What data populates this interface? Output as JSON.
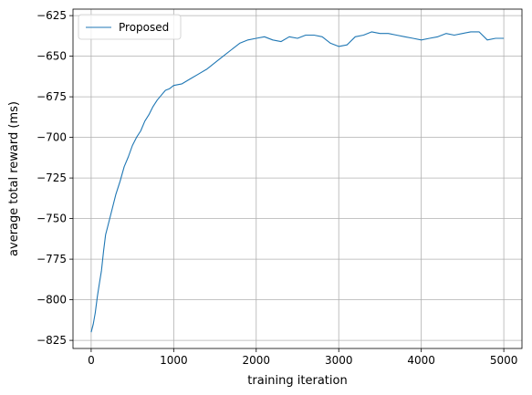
{
  "chart_data": {
    "type": "line",
    "title": "",
    "xlabel": "training iteration",
    "ylabel": "average total reward (ms)",
    "xlim": [
      -220,
      5220
    ],
    "ylim": [
      -830,
      -621
    ],
    "xticks": [
      0,
      1000,
      2000,
      3000,
      4000,
      5000
    ],
    "yticks": [
      -825,
      -800,
      -775,
      -750,
      -725,
      -700,
      -675,
      -650,
      -625
    ],
    "grid": true,
    "legend_position": "top-left",
    "series": [
      {
        "name": "Proposed",
        "color": "#1f77b4",
        "x": [
          0,
          25,
          50,
          75,
          100,
          125,
          150,
          175,
          200,
          250,
          300,
          350,
          400,
          450,
          500,
          550,
          600,
          650,
          700,
          750,
          800,
          850,
          900,
          950,
          1000,
          1100,
          1200,
          1300,
          1400,
          1500,
          1600,
          1700,
          1800,
          1900,
          2000,
          2100,
          2200,
          2300,
          2400,
          2500,
          2600,
          2700,
          2800,
          2900,
          3000,
          3100,
          3200,
          3300,
          3400,
          3500,
          3600,
          3700,
          3800,
          3900,
          4000,
          4100,
          4200,
          4300,
          4400,
          4500,
          4600,
          4700,
          4800,
          4900,
          5000
        ],
        "values": [
          -820,
          -815,
          -808,
          -798,
          -790,
          -782,
          -770,
          -760,
          -755,
          -745,
          -735,
          -727,
          -718,
          -712,
          -705,
          -700,
          -696,
          -690,
          -686,
          -681,
          -677,
          -674,
          -671,
          -670,
          -668,
          -667,
          -664,
          -661,
          -658,
          -654,
          -650,
          -646,
          -642,
          -640,
          -639,
          -638,
          -640,
          -641,
          -638,
          -639,
          -637,
          -637,
          -638,
          -642,
          -644,
          -643,
          -638,
          -637,
          -635,
          -636,
          -636,
          -637,
          -638,
          -639,
          -640,
          -639,
          -638,
          -636,
          -637,
          -636,
          -635,
          -635,
          -640,
          -639,
          -639
        ]
      }
    ]
  }
}
